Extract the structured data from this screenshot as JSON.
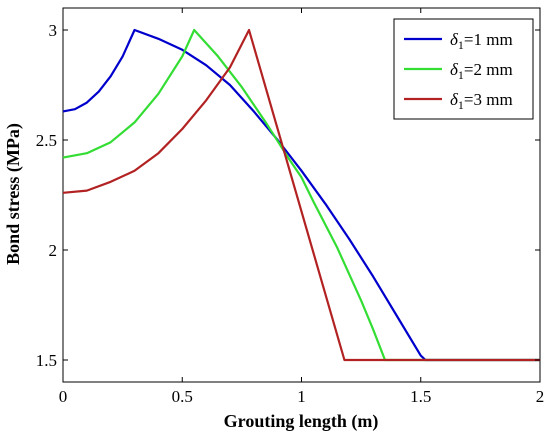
{
  "chart_data": {
    "type": "line",
    "title": "",
    "xlabel": "Grouting length (m)",
    "ylabel": "Bond stress (MPa)",
    "xlim": [
      0,
      2
    ],
    "ylim": [
      1.4,
      3.1
    ],
    "xticks": [
      0,
      0.5,
      1,
      1.5,
      2
    ],
    "xtick_labels": [
      "0",
      "0.5",
      "1",
      "1.5",
      "2"
    ],
    "yticks": [
      1.5,
      2,
      2.5,
      3
    ],
    "ytick_labels": [
      "1.5",
      "2",
      "2.5",
      "3"
    ],
    "grid": false,
    "legend_position": "top-right",
    "series": [
      {
        "name": "δ1=1 mm",
        "legend_symbol": "δ",
        "legend_subscript": "1",
        "legend_suffix": "=1 mm",
        "color": "#0000cc",
        "points": [
          [
            0,
            2.63
          ],
          [
            0.05,
            2.64
          ],
          [
            0.1,
            2.67
          ],
          [
            0.15,
            2.72
          ],
          [
            0.2,
            2.79
          ],
          [
            0.25,
            2.88
          ],
          [
            0.3,
            3.0
          ],
          [
            0.4,
            2.96
          ],
          [
            0.5,
            2.91
          ],
          [
            0.6,
            2.84
          ],
          [
            0.7,
            2.75
          ],
          [
            0.8,
            2.63
          ],
          [
            0.9,
            2.5
          ],
          [
            1.0,
            2.36
          ],
          [
            1.1,
            2.21
          ],
          [
            1.2,
            2.05
          ],
          [
            1.3,
            1.88
          ],
          [
            1.4,
            1.7
          ],
          [
            1.5,
            1.52
          ],
          [
            1.52,
            1.5
          ],
          [
            2.0,
            1.5
          ]
        ]
      },
      {
        "name": "δ1=2 mm",
        "legend_symbol": "δ",
        "legend_subscript": "1",
        "legend_suffix": "=2 mm",
        "color": "#33dd33",
        "points": [
          [
            0,
            2.42
          ],
          [
            0.1,
            2.44
          ],
          [
            0.2,
            2.49
          ],
          [
            0.3,
            2.58
          ],
          [
            0.4,
            2.71
          ],
          [
            0.5,
            2.88
          ],
          [
            0.55,
            3.0
          ],
          [
            0.65,
            2.88
          ],
          [
            0.75,
            2.74
          ],
          [
            0.85,
            2.58
          ],
          [
            0.95,
            2.41
          ],
          [
            1.0,
            2.33
          ],
          [
            1.05,
            2.22
          ],
          [
            1.15,
            2.01
          ],
          [
            1.25,
            1.77
          ],
          [
            1.3,
            1.64
          ],
          [
            1.35,
            1.5
          ],
          [
            2.0,
            1.5
          ]
        ]
      },
      {
        "name": "δ1=3 mm",
        "legend_symbol": "δ",
        "legend_subscript": "1",
        "legend_suffix": "=3 mm",
        "color": "#b22222",
        "points": [
          [
            0,
            2.26
          ],
          [
            0.1,
            2.27
          ],
          [
            0.2,
            2.31
          ],
          [
            0.3,
            2.36
          ],
          [
            0.4,
            2.44
          ],
          [
            0.5,
            2.55
          ],
          [
            0.6,
            2.68
          ],
          [
            0.7,
            2.83
          ],
          [
            0.78,
            3.0
          ],
          [
            1.18,
            1.5
          ],
          [
            2.0,
            1.5
          ]
        ]
      }
    ]
  }
}
